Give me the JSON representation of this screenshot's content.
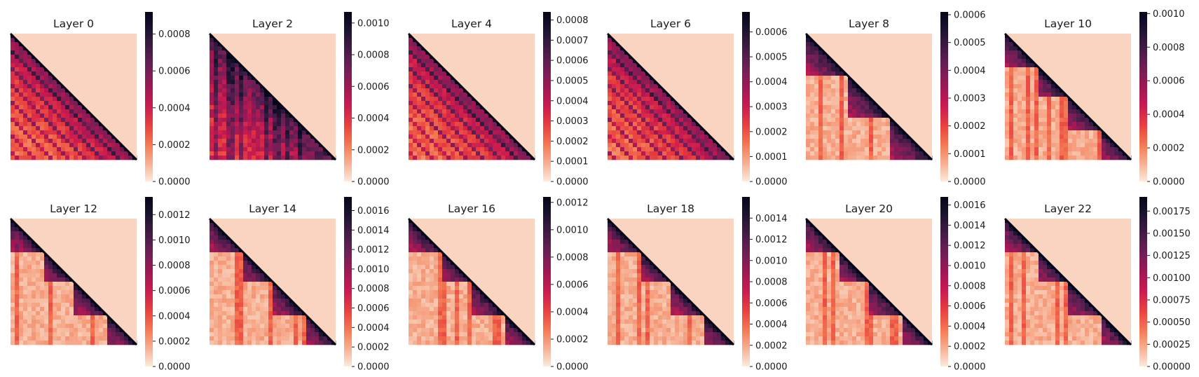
{
  "colormap": {
    "name": "rocket_r",
    "stops": [
      "#faebdd",
      "#f6ad8f",
      "#f37651",
      "#e83f3f",
      "#cb1b4f",
      "#9f1853",
      "#701f57",
      "#451c47",
      "#1f1432",
      "#03051a"
    ]
  },
  "chart_data": [
    {
      "type": "heatmap",
      "pattern": "causal-attention",
      "title": "Layer 0",
      "vmin": 0,
      "vmax": 0.00092,
      "ticks": [
        "0.0000",
        "0.0002",
        "0.0004",
        "0.0006",
        "0.0008"
      ],
      "tick_values": [
        0,
        0.0002,
        0.0004,
        0.0006,
        0.0008
      ],
      "block_count": 1,
      "style": "diagonal-stripes"
    },
    {
      "type": "heatmap",
      "pattern": "causal-attention",
      "title": "Layer 2",
      "vmin": 0,
      "vmax": 0.00107,
      "ticks": [
        "0.0000",
        "0.0002",
        "0.0004",
        "0.0006",
        "0.0008",
        "0.0010"
      ],
      "tick_values": [
        0,
        0.0002,
        0.0004,
        0.0006,
        0.0008,
        0.001
      ],
      "block_count": 1,
      "style": "vertical-bands"
    },
    {
      "type": "heatmap",
      "pattern": "causal-attention",
      "title": "Layer 4",
      "vmin": 0,
      "vmax": 0.00084,
      "ticks": [
        "0.0000",
        "0.0001",
        "0.0002",
        "0.0003",
        "0.0004",
        "0.0005",
        "0.0006",
        "0.0007",
        "0.0008"
      ],
      "tick_values": [
        0,
        0.0001,
        0.0002,
        0.0003,
        0.0004,
        0.0005,
        0.0006,
        0.0007,
        0.0008
      ],
      "block_count": 1,
      "style": "diagonal-stripes"
    },
    {
      "type": "heatmap",
      "pattern": "causal-attention",
      "title": "Layer 6",
      "vmin": 0,
      "vmax": 0.00068,
      "ticks": [
        "0.0000",
        "0.0001",
        "0.0002",
        "0.0003",
        "0.0004",
        "0.0005",
        "0.0006"
      ],
      "tick_values": [
        0,
        0.0001,
        0.0002,
        0.0003,
        0.0004,
        0.0005,
        0.0006
      ],
      "block_count": 1,
      "style": "diagonal-stripes"
    },
    {
      "type": "heatmap",
      "pattern": "causal-attention",
      "title": "Layer 8",
      "vmin": 0,
      "vmax": 0.00061,
      "ticks": [
        "0.0000",
        "0.0001",
        "0.0002",
        "0.0003",
        "0.0004",
        "0.0005",
        "0.0006"
      ],
      "tick_values": [
        0,
        0.0001,
        0.0002,
        0.0003,
        0.0004,
        0.0005,
        0.0006
      ],
      "block_count": 3,
      "style": "blocks"
    },
    {
      "type": "heatmap",
      "pattern": "causal-attention",
      "title": "Layer 10",
      "vmin": 0,
      "vmax": 0.00101,
      "ticks": [
        "0.0000",
        "0.0002",
        "0.0004",
        "0.0006",
        "0.0008",
        "0.0010"
      ],
      "tick_values": [
        0,
        0.0002,
        0.0004,
        0.0006,
        0.0008,
        0.001
      ],
      "block_count": 4,
      "style": "blocks"
    },
    {
      "type": "heatmap",
      "pattern": "causal-attention",
      "title": "Layer 12",
      "vmin": 0,
      "vmax": 0.00134,
      "ticks": [
        "0.0000",
        "0.0002",
        "0.0004",
        "0.0006",
        "0.0008",
        "0.0010",
        "0.0012"
      ],
      "tick_values": [
        0,
        0.0002,
        0.0004,
        0.0006,
        0.0008,
        0.001,
        0.0012
      ],
      "block_count": 4,
      "style": "blocks"
    },
    {
      "type": "heatmap",
      "pattern": "causal-attention",
      "title": "Layer 14",
      "vmin": 0,
      "vmax": 0.00174,
      "ticks": [
        "0.0000",
        "0.0002",
        "0.0004",
        "0.0006",
        "0.0008",
        "0.0010",
        "0.0012",
        "0.0014",
        "0.0016"
      ],
      "tick_values": [
        0,
        0.0002,
        0.0004,
        0.0006,
        0.0008,
        0.001,
        0.0012,
        0.0014,
        0.0016
      ],
      "block_count": 4,
      "style": "blocks"
    },
    {
      "type": "heatmap",
      "pattern": "causal-attention",
      "title": "Layer 16",
      "vmin": 0,
      "vmax": 0.00124,
      "ticks": [
        "0.0000",
        "0.0002",
        "0.0004",
        "0.0006",
        "0.0008",
        "0.0010",
        "0.0012"
      ],
      "tick_values": [
        0,
        0.0002,
        0.0004,
        0.0006,
        0.0008,
        0.001,
        0.0012
      ],
      "block_count": 4,
      "style": "blocks"
    },
    {
      "type": "heatmap",
      "pattern": "causal-attention",
      "title": "Layer 18",
      "vmin": 0,
      "vmax": 0.0016,
      "ticks": [
        "0.0000",
        "0.0002",
        "0.0004",
        "0.0006",
        "0.0008",
        "0.0010",
        "0.0012",
        "0.0014"
      ],
      "tick_values": [
        0,
        0.0002,
        0.0004,
        0.0006,
        0.0008,
        0.001,
        0.0012,
        0.0014
      ],
      "block_count": 4,
      "style": "blocks"
    },
    {
      "type": "heatmap",
      "pattern": "causal-attention",
      "title": "Layer 20",
      "vmin": 0,
      "vmax": 0.00168,
      "ticks": [
        "0.0000",
        "0.0002",
        "0.0004",
        "0.0006",
        "0.0008",
        "0.0010",
        "0.0012",
        "0.0014",
        "0.0016"
      ],
      "tick_values": [
        0,
        0.0002,
        0.0004,
        0.0006,
        0.0008,
        0.001,
        0.0012,
        0.0014,
        0.0016
      ],
      "block_count": 4,
      "style": "blocks"
    },
    {
      "type": "heatmap",
      "pattern": "causal-attention",
      "title": "Layer 22",
      "vmin": 0,
      "vmax": 0.00191,
      "ticks": [
        "0.00000",
        "0.00025",
        "0.00050",
        "0.00075",
        "0.00100",
        "0.00125",
        "0.00150",
        "0.00175"
      ],
      "tick_values": [
        0,
        0.00025,
        0.0005,
        0.00075,
        0.001,
        0.00125,
        0.0015,
        0.00175
      ],
      "block_count": 4,
      "style": "blocks"
    }
  ]
}
